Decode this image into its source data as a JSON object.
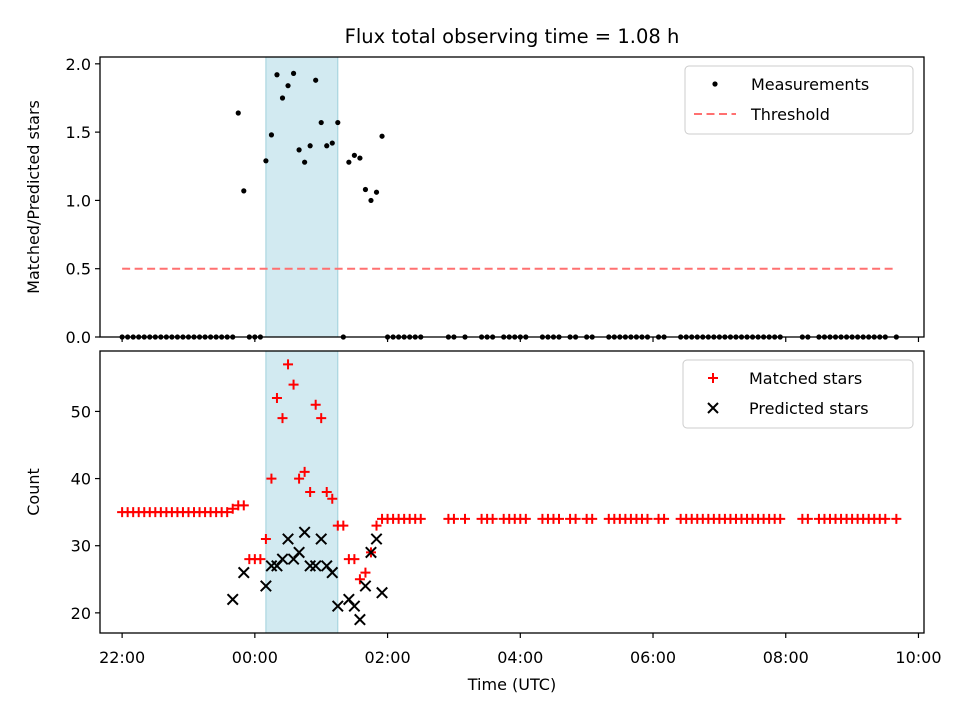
{
  "chart_data": [
    {
      "type": "scatter",
      "title": "Flux total observing time = 1.08 h",
      "xlabel": "",
      "ylabel": "Matched/Predicted stars",
      "ylim": [
        0,
        2.05
      ],
      "xlim": [
        "21:40",
        "10:05"
      ],
      "x_axis_type": "time (UTC), hours after 22:00 of first night",
      "yticks": [
        "0.0",
        "0.5",
        "1.0",
        "1.5",
        "2.0"
      ],
      "highlight_span": [
        "00:10",
        "01:15"
      ],
      "legend_position": "top-right",
      "legend": [
        {
          "label": "Measurements"
        },
        {
          "label": "Threshold"
        }
      ],
      "series": [
        {
          "name": "Measurements",
          "style": "black dots",
          "points": [
            [
              "23:45",
              1.64
            ],
            [
              "23:50",
              1.07
            ],
            [
              "00:10",
              1.29
            ],
            [
              "00:15",
              1.48
            ],
            [
              "00:20",
              1.92
            ],
            [
              "00:25",
              1.75
            ],
            [
              "00:30",
              1.84
            ],
            [
              "00:35",
              1.93
            ],
            [
              "00:40",
              1.37
            ],
            [
              "00:45",
              1.28
            ],
            [
              "00:50",
              1.4
            ],
            [
              "00:55",
              1.88
            ],
            [
              "01:00",
              1.57
            ],
            [
              "01:05",
              1.4
            ],
            [
              "01:10",
              1.42
            ],
            [
              "01:15",
              1.57
            ],
            [
              "01:25",
              1.28
            ],
            [
              "01:30",
              1.33
            ],
            [
              "01:35",
              1.31
            ],
            [
              "01:40",
              1.08
            ],
            [
              "01:45",
              1.0
            ],
            [
              "01:50",
              1.06
            ],
            [
              "01:55",
              1.47
            ]
          ],
          "zero_points": [
            "22:00",
            "22:05",
            "22:10",
            "22:15",
            "22:20",
            "22:25",
            "22:30",
            "22:35",
            "22:40",
            "22:45",
            "22:50",
            "22:55",
            "23:00",
            "23:05",
            "23:10",
            "23:15",
            "23:20",
            "23:25",
            "23:30",
            "23:35",
            "23:40",
            "23:55",
            "00:00",
            "00:05",
            "01:20",
            "02:00",
            "02:05",
            "02:10",
            "02:15",
            "02:20",
            "02:25",
            "02:30",
            "02:55",
            "03:00",
            "03:10",
            "03:25",
            "03:30",
            "03:35",
            "03:45",
            "03:50",
            "03:55",
            "04:00",
            "04:05",
            "04:20",
            "04:25",
            "04:30",
            "04:35",
            "04:45",
            "04:50",
            "05:00",
            "05:05",
            "05:20",
            "05:25",
            "05:30",
            "05:35",
            "05:40",
            "05:45",
            "05:50",
            "05:55",
            "06:05",
            "06:10",
            "06:25",
            "06:30",
            "06:35",
            "06:40",
            "06:45",
            "06:50",
            "06:55",
            "07:00",
            "07:05",
            "07:10",
            "07:15",
            "07:20",
            "07:25",
            "07:30",
            "07:35",
            "07:40",
            "07:45",
            "07:50",
            "07:55",
            "08:15",
            "08:20",
            "08:30",
            "08:35",
            "08:40",
            "08:45",
            "08:50",
            "08:55",
            "09:00",
            "09:05",
            "09:10",
            "09:15",
            "09:20",
            "09:25",
            "09:30",
            "09:40"
          ]
        },
        {
          "name": "Threshold",
          "style": "dashed line",
          "color": "#ff7070",
          "points": [
            [
              "22:00",
              0.5
            ],
            [
              "09:40",
              0.5
            ]
          ]
        }
      ]
    },
    {
      "type": "scatter",
      "title": "",
      "xlabel": "Time (UTC)",
      "ylabel": "Count",
      "ylim": [
        17,
        59
      ],
      "xlim": [
        "21:40",
        "10:05"
      ],
      "yticks": [
        "20",
        "30",
        "40",
        "50"
      ],
      "xticks": [
        "22:00",
        "00:00",
        "02:00",
        "04:00",
        "06:00",
        "08:00",
        "10:00"
      ],
      "highlight_span": [
        "00:10",
        "01:15"
      ],
      "legend_position": "top-right",
      "legend": [
        {
          "label": "Matched stars"
        },
        {
          "label": "Predicted stars"
        }
      ],
      "series": [
        {
          "name": "Matched stars",
          "style": "plus",
          "color": "#ff0000",
          "points": [
            [
              "22:00",
              35
            ],
            [
              "22:05",
              35
            ],
            [
              "22:10",
              35
            ],
            [
              "22:15",
              35
            ],
            [
              "22:20",
              35
            ],
            [
              "22:25",
              35
            ],
            [
              "22:30",
              35
            ],
            [
              "22:35",
              35
            ],
            [
              "22:40",
              35
            ],
            [
              "22:45",
              35
            ],
            [
              "22:50",
              35
            ],
            [
              "22:55",
              35
            ],
            [
              "23:00",
              35
            ],
            [
              "23:05",
              35
            ],
            [
              "23:10",
              35
            ],
            [
              "23:15",
              35
            ],
            [
              "23:20",
              35
            ],
            [
              "23:25",
              35
            ],
            [
              "23:30",
              35
            ],
            [
              "23:35",
              35
            ],
            [
              "23:40",
              35.5
            ],
            [
              "23:45",
              36
            ],
            [
              "23:50",
              36
            ],
            [
              "23:55",
              28
            ],
            [
              "00:00",
              28
            ],
            [
              "00:05",
              28
            ],
            [
              "00:10",
              31
            ],
            [
              "00:15",
              40
            ],
            [
              "00:20",
              52
            ],
            [
              "00:25",
              49
            ],
            [
              "00:30",
              57
            ],
            [
              "00:35",
              54
            ],
            [
              "00:40",
              40
            ],
            [
              "00:45",
              41
            ],
            [
              "00:50",
              38
            ],
            [
              "00:55",
              51
            ],
            [
              "01:00",
              49
            ],
            [
              "01:05",
              38
            ],
            [
              "01:10",
              37
            ],
            [
              "01:15",
              33
            ],
            [
              "01:20",
              33
            ],
            [
              "01:25",
              28
            ],
            [
              "01:30",
              28
            ],
            [
              "01:35",
              25
            ],
            [
              "01:40",
              26
            ],
            [
              "01:45",
              29
            ],
            [
              "01:50",
              33
            ],
            [
              "01:55",
              34
            ],
            [
              "02:00",
              34
            ],
            [
              "02:05",
              34
            ],
            [
              "02:10",
              34
            ],
            [
              "02:15",
              34
            ],
            [
              "02:20",
              34
            ],
            [
              "02:25",
              34
            ],
            [
              "02:30",
              34
            ],
            [
              "02:55",
              34
            ],
            [
              "03:00",
              34
            ],
            [
              "03:10",
              34
            ],
            [
              "03:25",
              34
            ],
            [
              "03:30",
              34
            ],
            [
              "03:35",
              34
            ],
            [
              "03:45",
              34
            ],
            [
              "03:50",
              34
            ],
            [
              "03:55",
              34
            ],
            [
              "04:00",
              34
            ],
            [
              "04:05",
              34
            ],
            [
              "04:20",
              34
            ],
            [
              "04:25",
              34
            ],
            [
              "04:30",
              34
            ],
            [
              "04:35",
              34
            ],
            [
              "04:45",
              34
            ],
            [
              "04:50",
              34
            ],
            [
              "05:00",
              34
            ],
            [
              "05:05",
              34
            ],
            [
              "05:20",
              34
            ],
            [
              "05:25",
              34
            ],
            [
              "05:30",
              34
            ],
            [
              "05:35",
              34
            ],
            [
              "05:40",
              34
            ],
            [
              "05:45",
              34
            ],
            [
              "05:50",
              34
            ],
            [
              "05:55",
              34
            ],
            [
              "06:05",
              34
            ],
            [
              "06:10",
              34
            ],
            [
              "06:25",
              34
            ],
            [
              "06:30",
              34
            ],
            [
              "06:35",
              34
            ],
            [
              "06:40",
              34
            ],
            [
              "06:45",
              34
            ],
            [
              "06:50",
              34
            ],
            [
              "06:55",
              34
            ],
            [
              "07:00",
              34
            ],
            [
              "07:05",
              34
            ],
            [
              "07:10",
              34
            ],
            [
              "07:15",
              34
            ],
            [
              "07:20",
              34
            ],
            [
              "07:25",
              34
            ],
            [
              "07:30",
              34
            ],
            [
              "07:35",
              34
            ],
            [
              "07:40",
              34
            ],
            [
              "07:45",
              34
            ],
            [
              "07:50",
              34
            ],
            [
              "07:55",
              34
            ],
            [
              "08:15",
              34
            ],
            [
              "08:20",
              34
            ],
            [
              "08:30",
              34
            ],
            [
              "08:35",
              34
            ],
            [
              "08:40",
              34
            ],
            [
              "08:45",
              34
            ],
            [
              "08:50",
              34
            ],
            [
              "08:55",
              34
            ],
            [
              "09:00",
              34
            ],
            [
              "09:05",
              34
            ],
            [
              "09:10",
              34
            ],
            [
              "09:15",
              34
            ],
            [
              "09:20",
              34
            ],
            [
              "09:25",
              34
            ],
            [
              "09:30",
              34
            ],
            [
              "09:40",
              34
            ]
          ]
        },
        {
          "name": "Predicted stars",
          "style": "x",
          "color": "#000000",
          "points": [
            [
              "23:40",
              22
            ],
            [
              "23:50",
              26
            ],
            [
              "00:10",
              24
            ],
            [
              "00:15",
              27
            ],
            [
              "00:20",
              27
            ],
            [
              "00:25",
              28
            ],
            [
              "00:30",
              31
            ],
            [
              "00:35",
              28
            ],
            [
              "00:40",
              29
            ],
            [
              "00:45",
              32
            ],
            [
              "00:50",
              27
            ],
            [
              "00:55",
              27
            ],
            [
              "01:00",
              31
            ],
            [
              "01:05",
              27
            ],
            [
              "01:10",
              26
            ],
            [
              "01:15",
              21
            ],
            [
              "01:25",
              22
            ],
            [
              "01:30",
              21
            ],
            [
              "01:35",
              19
            ],
            [
              "01:40",
              24
            ],
            [
              "01:45",
              29
            ],
            [
              "01:50",
              31
            ],
            [
              "01:55",
              23
            ]
          ]
        }
      ]
    }
  ]
}
